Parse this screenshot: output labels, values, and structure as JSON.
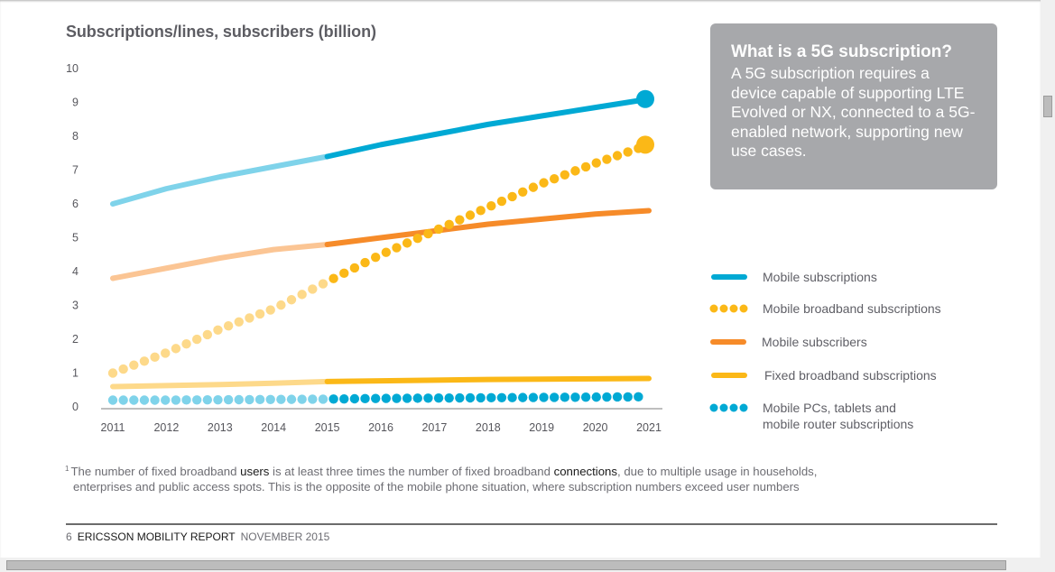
{
  "chart_data": {
    "type": "line",
    "title": "Subscriptions/lines, subscribers (billion)",
    "xlabel": "",
    "ylabel": "Subscriptions/lines, subscribers (billion)",
    "x": [
      2011,
      2012,
      2013,
      2014,
      2015,
      2016,
      2017,
      2018,
      2019,
      2020,
      2021
    ],
    "x_tick_labels": [
      "2011",
      "2012",
      "2013",
      "2014",
      "2015",
      "2016",
      "2017",
      "2018",
      "2019",
      "2020",
      "2021"
    ],
    "y_tick_labels": [
      "0",
      "1",
      "2",
      "3",
      "4",
      "5",
      "6",
      "7",
      "8",
      "9",
      "10"
    ],
    "ylim": [
      0,
      10
    ],
    "xlim": [
      2011,
      2021
    ],
    "grid": false,
    "forecast_start": 2015,
    "legend_position": "right",
    "series": [
      {
        "name": "Mobile subscriptions",
        "style": "solid",
        "color": "#00a9d4",
        "color_history": "#7fd3ea",
        "values": [
          6.0,
          6.45,
          6.8,
          7.1,
          7.4,
          7.75,
          8.05,
          8.35,
          8.6,
          8.85,
          9.1
        ],
        "end_marker": true
      },
      {
        "name": "Mobile broadband subscriptions",
        "style": "dotted",
        "color": "#fbb817",
        "color_history": "#fdd98a",
        "values": [
          1.0,
          1.6,
          2.3,
          2.9,
          3.7,
          4.5,
          5.2,
          5.9,
          6.6,
          7.2,
          7.75
        ],
        "end_marker": true
      },
      {
        "name": "Mobile subscribers",
        "style": "solid",
        "color": "#f68b29",
        "color_history": "#fbc594",
        "values": [
          3.8,
          4.1,
          4.4,
          4.65,
          4.8,
          5.0,
          5.2,
          5.4,
          5.55,
          5.7,
          5.8
        ],
        "end_marker": false
      },
      {
        "name": "Fixed broadband subscriptions",
        "style": "solid",
        "color": "#fbb817",
        "color_history": "#fdd98a",
        "values": [
          0.6,
          0.63,
          0.66,
          0.7,
          0.75,
          0.77,
          0.79,
          0.81,
          0.82,
          0.83,
          0.84
        ],
        "end_marker": false
      },
      {
        "name": "Mobile PCs, tablets and mobile router subscriptions",
        "style": "dotted",
        "color": "#00a9d4",
        "color_history": "#7fd3ea",
        "values": [
          0.2,
          0.2,
          0.21,
          0.22,
          0.23,
          0.25,
          0.26,
          0.27,
          0.28,
          0.29,
          0.3
        ],
        "end_marker": false
      }
    ]
  },
  "infobox": {
    "title": "What is a 5G subscription?",
    "body": "A 5G subscription requires a device capable of supporting LTE Evolved or NX, connected to a 5G-enabled network, supporting new use cases."
  },
  "legend": [
    {
      "label": "Mobile subscriptions"
    },
    {
      "label": "Mobile broadband subscriptions"
    },
    {
      "label": "Mobile subscribers"
    },
    {
      "label": "Fixed broadband subscriptions"
    },
    {
      "label_line1": "Mobile PCs, tablets and",
      "label_line2": "mobile router subscriptions"
    }
  ],
  "footnote": {
    "marker": "1",
    "part1": "The number of fixed broadband ",
    "em1": "users",
    "part2": " is at least three times the number of fixed broadband ",
    "em2": "connections",
    "part3": ", due to multiple usage in households,",
    "line2": "enterprises and public access spots. This is the opposite of the mobile phone situation, where subscription numbers exceed user numbers"
  },
  "footer": {
    "page_number": "6",
    "report_name": "ERICSSON MOBILITY REPORT",
    "date": "NOVEMBER 2015"
  }
}
